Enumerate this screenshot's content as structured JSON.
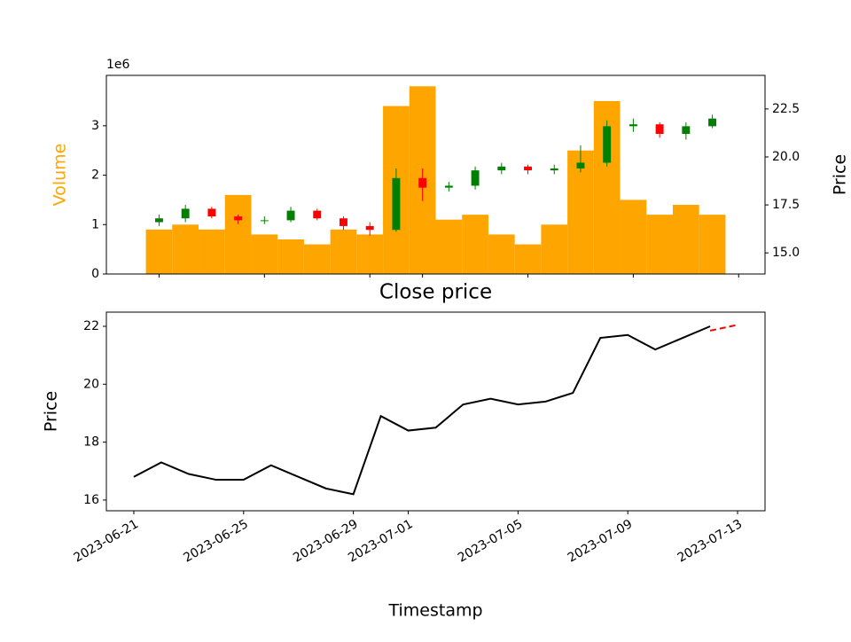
{
  "chart_data": [
    {
      "type": "candlestick",
      "x": [
        "2023-06-21",
        "2023-06-22",
        "2023-06-23",
        "2023-06-24",
        "2023-06-25",
        "2023-06-26",
        "2023-06-27",
        "2023-06-28",
        "2023-06-29",
        "2023-06-30",
        "2023-07-01",
        "2023-07-02",
        "2023-07-03",
        "2023-07-04",
        "2023-07-05",
        "2023-07-06",
        "2023-07-07",
        "2023-07-08",
        "2023-07-09",
        "2023-07-10",
        "2023-07-11",
        "2023-07-12"
      ],
      "open": [
        16.6,
        16.8,
        17.3,
        16.9,
        16.7,
        16.7,
        17.2,
        16.8,
        16.4,
        16.2,
        18.9,
        18.4,
        18.5,
        19.3,
        19.5,
        19.3,
        19.4,
        19.7,
        21.6,
        21.7,
        21.2,
        21.6
      ],
      "high": [
        17.0,
        17.5,
        17.4,
        17.0,
        16.9,
        17.4,
        17.3,
        16.9,
        16.6,
        19.4,
        19.4,
        18.7,
        19.5,
        19.7,
        19.6,
        19.6,
        20.6,
        21.9,
        22.0,
        21.8,
        21.8,
        22.2
      ],
      "low": [
        16.4,
        16.6,
        16.8,
        16.5,
        16.5,
        16.6,
        16.7,
        16.2,
        15.9,
        16.1,
        17.7,
        18.2,
        18.3,
        19.1,
        19.1,
        19.1,
        19.2,
        19.5,
        21.3,
        21.0,
        20.9,
        21.5
      ],
      "close": [
        16.8,
        17.3,
        16.9,
        16.7,
        16.7,
        17.2,
        16.8,
        16.4,
        16.2,
        18.9,
        18.4,
        18.5,
        19.3,
        19.5,
        19.3,
        19.4,
        19.7,
        21.6,
        21.7,
        21.2,
        21.6,
        22.0
      ],
      "up_color": "green",
      "down_color": "red",
      "volume": [
        900000,
        1000000,
        900000,
        1600000,
        800000,
        700000,
        600000,
        900000,
        800000,
        3400000,
        3800000,
        1100000,
        1200000,
        800000,
        600000,
        1000000,
        2500000,
        3500000,
        1500000,
        1200000,
        1400000,
        1200000
      ],
      "volume_color": "orange",
      "ylabel": "Volume",
      "ylabel_color": "orange",
      "y_offset_label": "1e6",
      "ylim": [
        0,
        4020000
      ],
      "yticks": [
        {
          "value": 0,
          "label": "0"
        },
        {
          "value": 1000000,
          "label": "1"
        },
        {
          "value": 2000000,
          "label": "2"
        },
        {
          "value": 3000000,
          "label": "3"
        }
      ],
      "y2label": "Price",
      "y2lim": [
        13.9,
        24.25
      ],
      "y2ticks": [
        {
          "value": 15,
          "label": "15.0"
        },
        {
          "value": 17.5,
          "label": "17.5"
        },
        {
          "value": 20,
          "label": "20.0"
        },
        {
          "value": 22.5,
          "label": "22.5"
        }
      ],
      "xlim": [
        "2023-06-19",
        "2023-07-14"
      ],
      "xticks": [
        "2023-06-21",
        "2023-06-25",
        "2023-06-29",
        "2023-07-01",
        "2023-07-05",
        "2023-07-09",
        "2023-07-13"
      ]
    },
    {
      "type": "line",
      "title": "Close price",
      "xlabel": "Timestamp",
      "ylabel": "Price",
      "x": [
        "2023-06-21",
        "2023-06-22",
        "2023-06-23",
        "2023-06-24",
        "2023-06-25",
        "2023-06-26",
        "2023-06-27",
        "2023-06-28",
        "2023-06-29",
        "2023-06-30",
        "2023-07-01",
        "2023-07-02",
        "2023-07-03",
        "2023-07-04",
        "2023-07-05",
        "2023-07-06",
        "2023-07-07",
        "2023-07-08",
        "2023-07-09",
        "2023-07-10",
        "2023-07-11",
        "2023-07-12"
      ],
      "values": [
        16.8,
        17.3,
        16.9,
        16.7,
        16.7,
        17.2,
        16.8,
        16.4,
        16.2,
        18.9,
        18.4,
        18.5,
        19.3,
        19.5,
        19.3,
        19.4,
        19.7,
        21.6,
        21.7,
        21.2,
        21.6,
        22.0
      ],
      "color": "black",
      "forecast_x": [
        "2023-07-12",
        "2023-07-13"
      ],
      "forecast_values": [
        21.85,
        22.05
      ],
      "forecast_color": "red",
      "ylim": [
        15.63,
        22.49
      ],
      "yticks": [
        16,
        18,
        20,
        22
      ],
      "xlim": [
        "2023-06-20",
        "2023-07-14"
      ],
      "xticks": [
        "2023-06-21",
        "2023-06-25",
        "2023-06-29",
        "2023-07-01",
        "2023-07-05",
        "2023-07-09",
        "2023-07-13"
      ]
    }
  ]
}
